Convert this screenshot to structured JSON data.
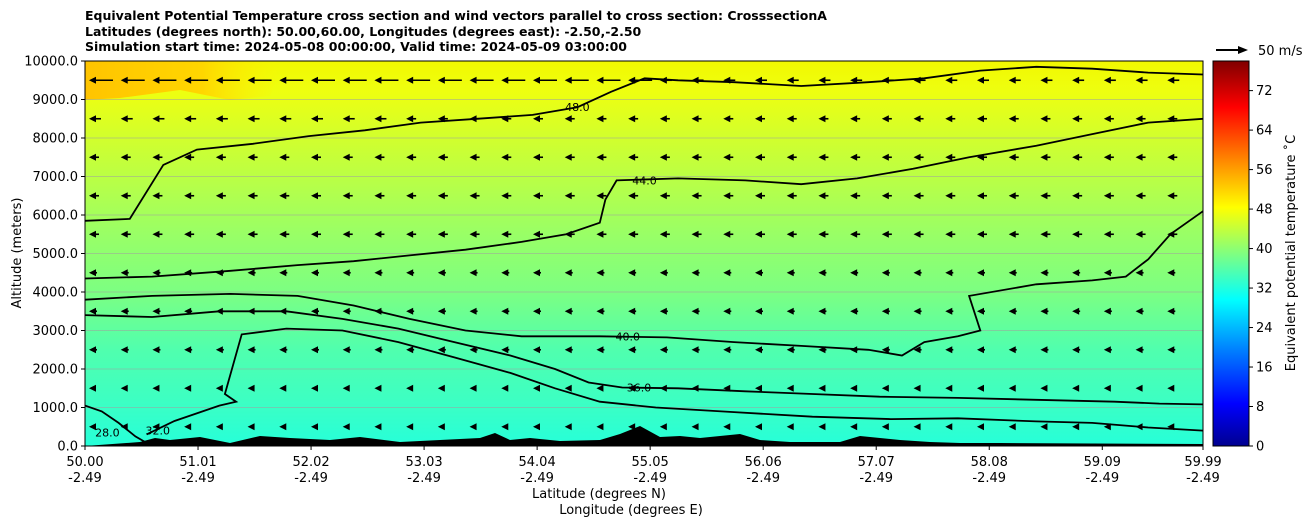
{
  "title_lines": [
    "Equivalent Potential Temperature cross section and wind vectors parallel to cross section: CrosssectionA",
    "Latitudes (degrees north): 50.00,60.00, Longitudes (degrees east): -2.50,-2.50",
    "Simulation start time: 2024-05-08 00:00:00, Valid time: 2024-05-09 03:00:00"
  ],
  "wind_key_label": "50 m/s",
  "chart_data": {
    "type": "contourf",
    "title": "Equivalent Potential Temperature cross section and wind vectors parallel to cross section: CrosssectionA",
    "ylabel": "Altitude (meters)",
    "xlabel_line1": "Latitude (degrees N)",
    "xlabel_line2": "Longitude (degrees E)",
    "ylim": [
      0,
      10000
    ],
    "y_ticks": [
      "0.0",
      "1000.0",
      "2000.0",
      "3000.0",
      "4000.0",
      "5000.0",
      "6000.0",
      "7000.0",
      "8000.0",
      "9000.0",
      "10000.0"
    ],
    "y_tick_values": [
      0,
      1000,
      2000,
      3000,
      4000,
      5000,
      6000,
      7000,
      8000,
      9000,
      10000
    ],
    "x_ticks": [
      {
        "lat": "50.00",
        "lon": "-2.49"
      },
      {
        "lat": "51.01",
        "lon": "-2.49"
      },
      {
        "lat": "52.02",
        "lon": "-2.49"
      },
      {
        "lat": "53.03",
        "lon": "-2.49"
      },
      {
        "lat": "54.04",
        "lon": "-2.49"
      },
      {
        "lat": "55.05",
        "lon": "-2.49"
      },
      {
        "lat": "56.06",
        "lon": "-2.49"
      },
      {
        "lat": "57.07",
        "lon": "-2.49"
      },
      {
        "lat": "58.08",
        "lon": "-2.49"
      },
      {
        "lat": "59.09",
        "lon": "-2.49"
      },
      {
        "lat": "59.99",
        "lon": "-2.49"
      }
    ],
    "x_tick_values": [
      50.0,
      51.01,
      52.02,
      53.03,
      54.04,
      55.05,
      56.06,
      57.07,
      58.08,
      59.09,
      59.99
    ],
    "xlim": [
      50.0,
      59.99
    ],
    "colorbar": {
      "label": "Equivalent potential temperature ˚C",
      "ticks": [
        "0",
        "8",
        "16",
        "24",
        "32",
        "40",
        "48",
        "56",
        "64",
        "72"
      ],
      "tick_values": [
        0,
        8,
        16,
        24,
        32,
        40,
        48,
        56,
        64,
        72
      ],
      "range": [
        0,
        78
      ]
    },
    "contour_lines": [
      {
        "level": 28.0,
        "points": [
          [
            50.0,
            1050
          ],
          [
            50.15,
            900
          ],
          [
            50.3,
            600
          ],
          [
            50.45,
            250
          ],
          [
            50.55,
            80
          ]
        ],
        "label_at": [
          50.2,
          350
        ],
        "label": "28.0"
      },
      {
        "level": 32.0,
        "points": [
          [
            50.55,
            300
          ],
          [
            50.8,
            650
          ],
          [
            51.2,
            1050
          ],
          [
            51.35,
            1150
          ],
          [
            51.25,
            1350
          ],
          [
            51.4,
            2900
          ],
          [
            51.8,
            3050
          ],
          [
            52.3,
            3000
          ],
          [
            52.8,
            2700
          ],
          [
            53.3,
            2300
          ],
          [
            53.8,
            1900
          ],
          [
            54.2,
            1500
          ],
          [
            54.6,
            1150
          ],
          [
            55.1,
            1000
          ],
          [
            55.8,
            880
          ],
          [
            56.5,
            760
          ],
          [
            57.2,
            700
          ],
          [
            57.8,
            720
          ],
          [
            58.5,
            640
          ],
          [
            59.0,
            600
          ],
          [
            59.5,
            480
          ],
          [
            59.99,
            400
          ]
        ],
        "label_at": [
          50.65,
          400
        ],
        "label": "32.0"
      },
      {
        "level": 36.0,
        "points": [
          [
            50.0,
            3400
          ],
          [
            50.6,
            3350
          ],
          [
            51.2,
            3500
          ],
          [
            51.8,
            3500
          ],
          [
            52.3,
            3300
          ],
          [
            52.8,
            3050
          ],
          [
            53.3,
            2700
          ],
          [
            53.8,
            2350
          ],
          [
            54.2,
            2000
          ],
          [
            54.5,
            1650
          ],
          [
            54.8,
            1520
          ],
          [
            55.3,
            1500
          ],
          [
            55.9,
            1420
          ],
          [
            56.5,
            1350
          ],
          [
            57.1,
            1280
          ],
          [
            57.8,
            1250
          ],
          [
            58.5,
            1200
          ],
          [
            59.2,
            1150
          ],
          [
            59.6,
            1100
          ],
          [
            59.99,
            1080
          ]
        ],
        "label_at": [
          54.95,
          1520
        ],
        "label": "36.0"
      },
      {
        "level": 40.0,
        "points": [
          [
            50.0,
            3800
          ],
          [
            50.6,
            3900
          ],
          [
            51.3,
            3950
          ],
          [
            51.9,
            3900
          ],
          [
            52.4,
            3650
          ],
          [
            52.9,
            3300
          ],
          [
            53.4,
            3000
          ],
          [
            53.9,
            2850
          ],
          [
            54.6,
            2850
          ],
          [
            55.2,
            2820
          ],
          [
            55.8,
            2700
          ],
          [
            56.4,
            2600
          ],
          [
            57.0,
            2500
          ],
          [
            57.3,
            2350
          ],
          [
            57.5,
            2700
          ],
          [
            57.8,
            2850
          ],
          [
            58.0,
            3000
          ],
          [
            57.9,
            3900
          ],
          [
            58.5,
            4200
          ],
          [
            59.0,
            4300
          ],
          [
            59.3,
            4400
          ],
          [
            59.5,
            4850
          ],
          [
            59.7,
            5500
          ],
          [
            59.99,
            6100
          ]
        ],
        "label_at": [
          54.85,
          2850
        ],
        "label": "40.0"
      },
      {
        "level": 44.0,
        "points": [
          [
            50.0,
            4350
          ],
          [
            50.6,
            4400
          ],
          [
            51.3,
            4550
          ],
          [
            51.9,
            4700
          ],
          [
            52.4,
            4800
          ],
          [
            52.9,
            4950
          ],
          [
            53.4,
            5100
          ],
          [
            53.9,
            5300
          ],
          [
            54.3,
            5500
          ],
          [
            54.6,
            5800
          ],
          [
            54.65,
            6400
          ],
          [
            54.75,
            6900
          ],
          [
            55.3,
            6950
          ],
          [
            55.9,
            6900
          ],
          [
            56.4,
            6800
          ],
          [
            56.9,
            6950
          ],
          [
            57.4,
            7200
          ],
          [
            57.9,
            7500
          ],
          [
            58.5,
            7800
          ],
          [
            59.0,
            8100
          ],
          [
            59.5,
            8400
          ],
          [
            59.99,
            8500
          ]
        ],
        "label_at": [
          55.0,
          6900
        ],
        "label": "44.0"
      },
      {
        "level": 48.0,
        "points": [
          [
            50.0,
            5850
          ],
          [
            50.4,
            5900
          ],
          [
            50.7,
            7300
          ],
          [
            51.0,
            7700
          ],
          [
            51.5,
            7850
          ],
          [
            52.0,
            8050
          ],
          [
            52.5,
            8200
          ],
          [
            53.0,
            8400
          ],
          [
            53.5,
            8500
          ],
          [
            54.0,
            8600
          ],
          [
            54.4,
            8800
          ],
          [
            54.7,
            9200
          ],
          [
            55.0,
            9550
          ],
          [
            55.3,
            9500
          ],
          [
            55.8,
            9450
          ],
          [
            56.4,
            9350
          ],
          [
            57.0,
            9450
          ],
          [
            57.5,
            9550
          ],
          [
            58.0,
            9750
          ],
          [
            58.5,
            9850
          ],
          [
            59.0,
            9800
          ],
          [
            59.5,
            9700
          ],
          [
            59.99,
            9650
          ]
        ],
        "label_at": [
          54.4,
          8800
        ],
        "label": "48.0"
      }
    ],
    "wind_vectors_note": "Southward (leftward) wind vectors along the section, strongest aloft near 9500 m.",
    "wind_key": {
      "speed": 50,
      "units": "m/s"
    }
  }
}
